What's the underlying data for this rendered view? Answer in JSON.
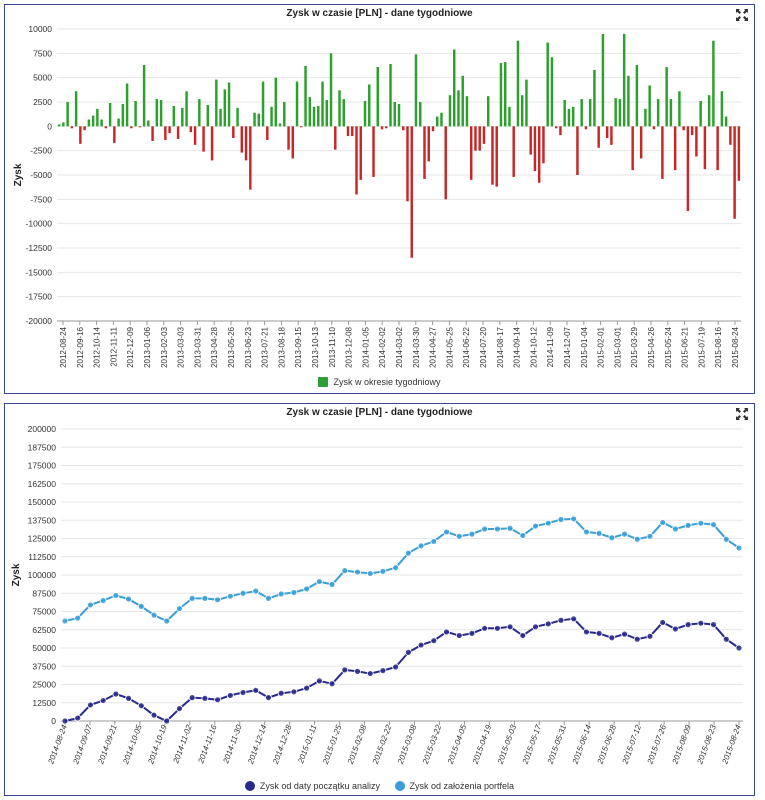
{
  "charts": [
    {
      "title": "Zysk w czasie [PLN] - dane tygodniowe",
      "legend": "Zysk w okresie tygodniowy"
    },
    {
      "title": "Zysk w czasie [PLN] - dane tygodniowe",
      "legend_1": "Zysk od daty początku analizy",
      "legend_2": "Zysk od założenia portfela"
    }
  ],
  "icons": {
    "expand": "expand-arrows-icon"
  },
  "colors": {
    "positive": "#2ca02c",
    "negative": "#c62828",
    "series1": "#2a2a8c",
    "series2": "#3a9fd8",
    "legendGreen": "#2e9e3a",
    "frame": "#39468f"
  },
  "chart_data": [
    {
      "type": "bar",
      "title": "Zysk w czasie [PLN] - dane tygodniowe",
      "ylabel": "Zysk",
      "ylim": [
        -20000,
        10000
      ],
      "yticks": [
        10000,
        7500,
        5000,
        2500,
        0,
        -2500,
        -5000,
        -7500,
        -10000,
        -12500,
        -15000,
        -17500,
        -20000
      ],
      "xtick_labels": [
        "2012-08-24",
        "2012-09-16",
        "2012-10-14",
        "2012-11-11",
        "2012-12-09",
        "2013-01-06",
        "2013-02-03",
        "2013-03-03",
        "2013-03-31",
        "2013-04-28",
        "2013-05-26",
        "2013-06-23",
        "2013-07-21",
        "2013-08-18",
        "2013-09-15",
        "2013-10-13",
        "2013-11-10",
        "2013-12-08",
        "2014-01-05",
        "2014-02-02",
        "2014-03-02",
        "2014-03-30",
        "2014-04-27",
        "2014-05-25",
        "2014-06-22",
        "2014-07-20",
        "2014-08-17",
        "2014-09-14",
        "2014-10-12",
        "2014-11-09",
        "2014-12-07",
        "2015-01-04",
        "2015-02-01",
        "2015-03-01",
        "2015-03-29",
        "2015-04-26",
        "2015-05-24",
        "2015-06-21",
        "2015-07-19",
        "2015-08-16",
        "2015-08-24"
      ],
      "series": [
        {
          "name": "Zysk w okresie tygodniowy",
          "values": [
            200,
            400,
            2500,
            -200,
            3600,
            -1800,
            -400,
            700,
            1100,
            1800,
            700,
            -200,
            2400,
            -1700,
            800,
            2300,
            4400,
            -200,
            2600,
            -100,
            6300,
            600,
            -1500,
            2800,
            2700,
            -1400,
            -700,
            2100,
            -1300,
            1900,
            3600,
            -600,
            -1900,
            2800,
            -2600,
            2200,
            -3500,
            4800,
            1800,
            3800,
            4500,
            -1200,
            1900,
            -2700,
            -3500,
            -6500,
            1400,
            1300,
            4600,
            -1400,
            2000,
            5000,
            300,
            2500,
            -2400,
            -3300,
            4600,
            -100,
            6200,
            3000,
            2000,
            2100,
            4600,
            2700,
            7500,
            -2400,
            3700,
            2800,
            -1000,
            -1000,
            -7000,
            -5500,
            2600,
            4300,
            -5200,
            6100,
            -300,
            -200,
            6400,
            2500,
            2300,
            -400,
            -7700,
            -13500,
            7400,
            2500,
            -5400,
            -3600,
            -500,
            1000,
            1400,
            -7500,
            3200,
            7900,
            3700,
            5200,
            3100,
            -5500,
            -2500,
            -2500,
            -1800,
            3100,
            -6000,
            -6200,
            6500,
            6600,
            2000,
            -5200,
            8800,
            3200,
            4800,
            -2900,
            -4600,
            -5800,
            -3800,
            8600,
            7100,
            -200,
            -900,
            2700,
            1800,
            2000,
            -5000,
            2800,
            -300,
            2800,
            5800,
            -2200,
            9500,
            -1200,
            -1900,
            2900,
            2800,
            9500,
            5200,
            -4500,
            6300,
            -3300,
            1800,
            4200,
            -300,
            2800,
            -5400,
            6100,
            2800,
            -4500,
            3600,
            -400,
            -8700,
            -900,
            -3100,
            2600,
            -4400,
            3200,
            8800,
            -4500,
            3600,
            1000,
            -1900,
            -9500,
            -5600
          ]
        }
      ]
    },
    {
      "type": "line",
      "title": "Zysk w czasie [PLN] - dane tygodniowe",
      "ylabel": "Zysk",
      "ylim": [
        0,
        200000
      ],
      "yticks": [
        200000,
        187500,
        175000,
        162500,
        150000,
        137500,
        125000,
        112500,
        100000,
        87500,
        75000,
        62500,
        50000,
        37500,
        25000,
        12500,
        0
      ],
      "xtick_labels": [
        "2014-08-24",
        "2014-09-07",
        "2014-09-21",
        "2014-10-05",
        "2014-10-19",
        "2014-11-02",
        "2014-11-16",
        "2014-11-30",
        "2014-12-14",
        "2014-12-28",
        "2015-01-11",
        "2015-01-25",
        "2015-02-08",
        "2015-02-22",
        "2015-03-08",
        "2015-03-22",
        "2015-04-05",
        "2015-04-19",
        "2015-05-03",
        "2015-05-17",
        "2015-05-31",
        "2015-06-14",
        "2015-06-28",
        "2015-07-12",
        "2015-07-26",
        "2015-08-09",
        "2015-08-23",
        "2015-08-24"
      ],
      "series": [
        {
          "name": "Zysk od daty początku analizy",
          "values": [
            0,
            2000,
            11000,
            14000,
            18500,
            15500,
            10500,
            4000,
            0,
            8500,
            16000,
            15500,
            14500,
            17500,
            19500,
            21000,
            16000,
            19000,
            20000,
            22500,
            27500,
            25500,
            35000,
            34000,
            32500,
            34500,
            37000,
            47000,
            52000,
            55000,
            61000,
            58500,
            60000,
            63500,
            63500,
            64500,
            58500,
            64500,
            66500,
            69000,
            70000,
            61000,
            60000,
            57000,
            59500,
            56000,
            58000,
            67500,
            63000,
            66000,
            67000,
            66000,
            56000,
            50000
          ]
        },
        {
          "name": "Zysk od założenia portfela",
          "values": [
            68500,
            70500,
            79500,
            82500,
            86000,
            83500,
            78500,
            72500,
            68500,
            77000,
            84000,
            84000,
            83000,
            85500,
            87500,
            89000,
            84000,
            87000,
            88000,
            90500,
            95500,
            93500,
            103000,
            102000,
            101000,
            102500,
            105000,
            115000,
            120000,
            123000,
            129500,
            126500,
            128000,
            131500,
            131500,
            132000,
            127000,
            133500,
            135500,
            138000,
            138500,
            129500,
            128500,
            125500,
            128000,
            124500,
            126500,
            136000,
            131500,
            134000,
            135500,
            134500,
            124500,
            118500
          ]
        }
      ]
    }
  ]
}
